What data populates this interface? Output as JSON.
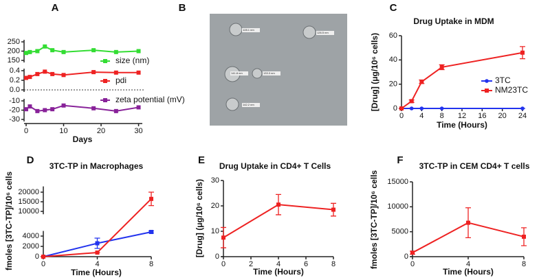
{
  "chart_data": [
    {
      "panel": "A",
      "type": "line_stacked",
      "xlabel": "Days",
      "xlim": [
        0,
        31
      ],
      "xticks": [
        0,
        10,
        20,
        30
      ],
      "series": [
        {
          "name": "size (nm)",
          "color": "#33dd33",
          "ylim": [
            150,
            250
          ],
          "yticks": [
            150,
            200,
            250
          ],
          "x": [
            0,
            1,
            3,
            5,
            7,
            10,
            18,
            24,
            30
          ],
          "values": [
            190,
            195,
            200,
            225,
            205,
            195,
            205,
            195,
            200
          ]
        },
        {
          "name": "pdi",
          "color": "#ee2222",
          "ylim": [
            0.0,
            0.4
          ],
          "yticks": [
            {
              "value": 0.0,
              "label": "0.0"
            },
            0.2,
            0.4
          ],
          "x": [
            0,
            1,
            3,
            5,
            7,
            10,
            18,
            24,
            30
          ],
          "values": [
            0.25,
            0.27,
            0.33,
            0.38,
            0.33,
            0.31,
            0.37,
            0.36,
            0.36
          ]
        },
        {
          "name": "zeta potential (mV)",
          "color": "#882299",
          "ylim": [
            -30,
            -10
          ],
          "yticks": [
            -30,
            -20,
            -10
          ],
          "x": [
            0,
            1,
            3,
            5,
            7,
            10,
            18,
            24,
            30
          ],
          "values": [
            -19,
            -16,
            -21,
            -20,
            -19,
            -15,
            -18,
            -21,
            -17
          ]
        }
      ]
    },
    {
      "panel": "B",
      "type": "image",
      "scale_labels": [
        "128.1 nm",
        "126.5 nm",
        "141.8 nm",
        "133.3 nm",
        "142.2 nm"
      ]
    },
    {
      "panel": "C",
      "type": "line",
      "title": "Drug Uptake in MDM",
      "xlabel": "Time (Hours)",
      "ylabel": "[Drug] (μg/10⁶ cells)",
      "xlim": [
        0,
        24
      ],
      "xticks": [
        0,
        4,
        8,
        12,
        16,
        20,
        24
      ],
      "ylim": [
        0,
        60
      ],
      "yticks": [
        0,
        20,
        40,
        60
      ],
      "legend": "lower right",
      "series": [
        {
          "name": "3TC",
          "color": "#2233ee",
          "x": [
            0,
            2,
            4,
            8,
            24
          ],
          "values": [
            0,
            0,
            0,
            0,
            0
          ],
          "errors": [
            0,
            0,
            0,
            0,
            0
          ]
        },
        {
          "name": "NM23TC",
          "color": "#ee2222",
          "x": [
            0,
            2,
            4,
            8,
            24
          ],
          "values": [
            0,
            6,
            22,
            34,
            46
          ],
          "errors": [
            0,
            1,
            1.5,
            2,
            5
          ]
        }
      ]
    },
    {
      "panel": "D",
      "type": "broken_line",
      "title": "3TC-TP in Macrophages",
      "xlabel": "Time (Hours)",
      "ylabel": "fmoles [3TC-TP]/10⁶ cells",
      "xlim": [
        0,
        8
      ],
      "xticks": [
        0,
        4,
        8
      ],
      "ylim_lower": [
        0,
        5000
      ],
      "yticks_lower": [
        0,
        2000,
        4000
      ],
      "ylim_upper": [
        8500,
        23000
      ],
      "yticks_upper": [
        10000,
        15000,
        20000
      ],
      "series": [
        {
          "name": "3TC",
          "color": "#2233ee",
          "x": [
            0,
            4,
            8
          ],
          "values": [
            0,
            2600,
            4800
          ],
          "errors": [
            0,
            1000,
            200
          ]
        },
        {
          "name": "NM23TC",
          "color": "#ee2222",
          "x": [
            0,
            4,
            8
          ],
          "values": [
            0,
            800,
            16500
          ],
          "errors": [
            0,
            0,
            3500
          ]
        }
      ]
    },
    {
      "panel": "E",
      "type": "line",
      "title": "Drug Uptake in CD4+ T Cells",
      "xlabel": "Time (Hours)",
      "ylabel": "[Drug] (μg/10⁶ cells)",
      "xlim": [
        0,
        8
      ],
      "xticks": [
        0,
        2,
        4,
        6,
        8
      ],
      "ylim": [
        0,
        30
      ],
      "yticks": [
        0,
        10,
        20,
        30
      ],
      "series": [
        {
          "color": "#ee2222",
          "x": [
            0,
            4,
            8
          ],
          "values": [
            7.5,
            20.5,
            18.5
          ],
          "errors": [
            4,
            4,
            2.5
          ]
        }
      ]
    },
    {
      "panel": "F",
      "type": "line",
      "title": "3TC-TP in CEM CD4+ T cells",
      "xlabel": "Time (Hours)",
      "ylabel": "fmoles [3TC-TP]/10⁶ cells",
      "xlim": [
        0,
        8
      ],
      "xticks": [
        0,
        4,
        8
      ],
      "ylim": [
        0,
        15000
      ],
      "yticks": [
        0,
        5000,
        10000,
        15000
      ],
      "series": [
        {
          "color": "#ee2222",
          "x": [
            0,
            4,
            8
          ],
          "values": [
            800,
            6800,
            4000
          ],
          "errors": [
            300,
            3000,
            1800
          ]
        }
      ]
    }
  ]
}
